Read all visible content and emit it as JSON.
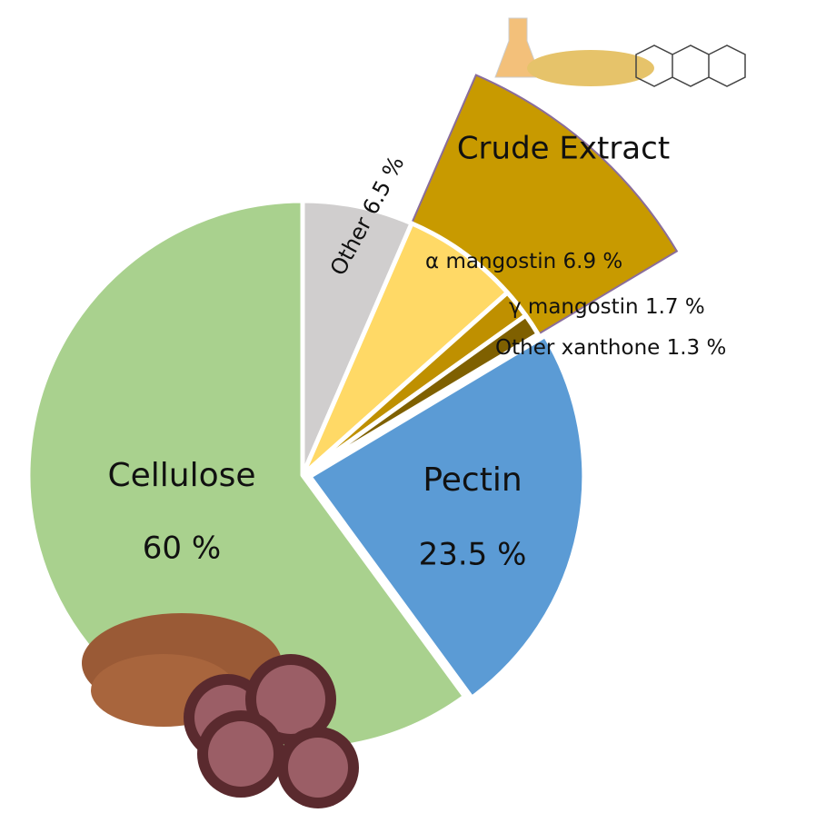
{
  "chart_data": {
    "type": "pie",
    "categories": [
      "Other",
      "α mangostin",
      "γ mangostin",
      "Other xanthone",
      "Pectin",
      "Cellulose"
    ],
    "values": [
      6.5,
      6.9,
      1.7,
      1.3,
      23.5,
      60
    ],
    "value_labels": [
      "6.5 %",
      "6.9 %",
      "1.7 %",
      "1.3 %",
      "23.5 %",
      "60 %"
    ],
    "colors": [
      "#d0cece",
      "#ffd966",
      "#bf9000",
      "#7f6000",
      "#5b9bd5",
      "#a9d18e"
    ],
    "annotation": "Crude Extract"
  }
}
